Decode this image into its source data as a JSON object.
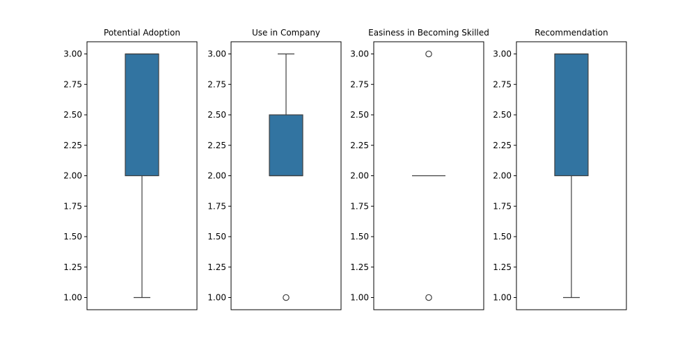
{
  "chart_data": [
    {
      "type": "boxplot",
      "title": "Potential Adoption",
      "box": {
        "q1": 2.0,
        "median": 3.0,
        "q3": 3.0,
        "whisker_low": 1.0,
        "whisker_high": 3.0
      },
      "outliers": [],
      "ylim": [
        0.9,
        3.1
      ],
      "yticks": [
        "1.00",
        "1.25",
        "1.50",
        "1.75",
        "2.00",
        "2.25",
        "2.50",
        "2.75",
        "3.00"
      ]
    },
    {
      "type": "boxplot",
      "title": "Use in Company",
      "box": {
        "q1": 2.0,
        "median": 2.0,
        "q3": 2.5,
        "whisker_low": 2.0,
        "whisker_high": 3.0
      },
      "outliers": [
        1.0
      ],
      "ylim": [
        0.9,
        3.1
      ],
      "yticks": [
        "1.00",
        "1.25",
        "1.50",
        "1.75",
        "2.00",
        "2.25",
        "2.50",
        "2.75",
        "3.00"
      ]
    },
    {
      "type": "boxplot",
      "title": "Easiness in Becoming Skilled",
      "box": {
        "q1": 2.0,
        "median": 2.0,
        "q3": 2.0,
        "whisker_low": 2.0,
        "whisker_high": 2.0
      },
      "outliers": [
        1.0,
        3.0
      ],
      "ylim": [
        0.9,
        3.1
      ],
      "yticks": [
        "1.00",
        "1.25",
        "1.50",
        "1.75",
        "2.00",
        "2.25",
        "2.50",
        "2.75",
        "3.00"
      ]
    },
    {
      "type": "boxplot",
      "title": "Recommendation",
      "box": {
        "q1": 2.0,
        "median": 3.0,
        "q3": 3.0,
        "whisker_low": 1.0,
        "whisker_high": 3.0
      },
      "outliers": [],
      "ylim": [
        0.9,
        3.1
      ],
      "yticks": [
        "1.00",
        "1.25",
        "1.50",
        "1.75",
        "2.00",
        "2.25",
        "2.50",
        "2.75",
        "3.00"
      ]
    }
  ],
  "style": {
    "box_fill": "#3274a1",
    "line_color": "#3f3f3f",
    "frame_color": "#000000"
  }
}
